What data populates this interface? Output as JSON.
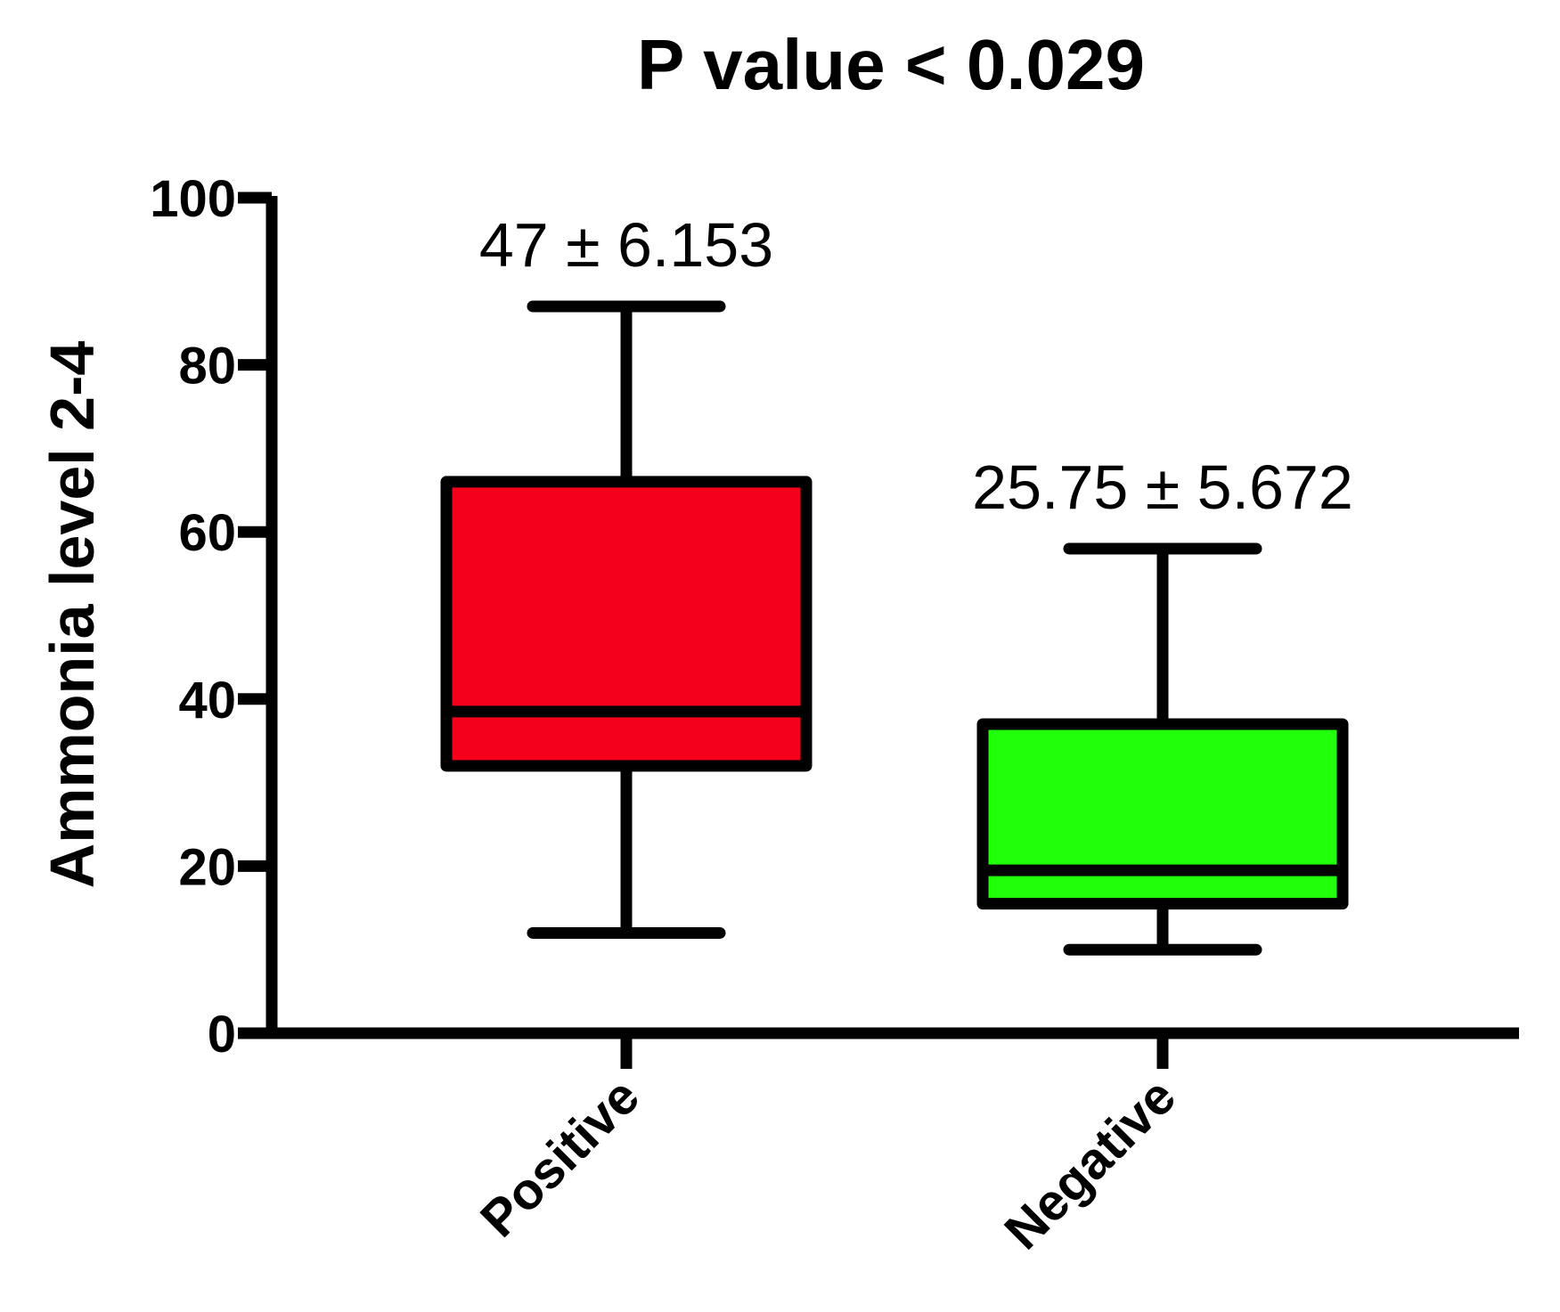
{
  "chart_data": {
    "type": "box",
    "title": "P value < 0.029",
    "xlabel": "",
    "ylabel": "Ammonia level  2-4",
    "ylim": [
      0,
      100
    ],
    "yticks": [
      0,
      20,
      40,
      60,
      80,
      100
    ],
    "grid": false,
    "categories": [
      "Positive",
      "Negative"
    ],
    "boxes": [
      {
        "category": "Positive",
        "min": 12,
        "q1": 32,
        "median": 38.5,
        "q3": 66,
        "max": 87,
        "color": "#f5001a",
        "annotation": "47 ± 6.153"
      },
      {
        "category": "Negative",
        "min": 10,
        "q1": 15.5,
        "median": 19.5,
        "q3": 37,
        "max": 58,
        "color": "#22ff0a",
        "annotation": "25.75 ± 5.672"
      }
    ]
  }
}
